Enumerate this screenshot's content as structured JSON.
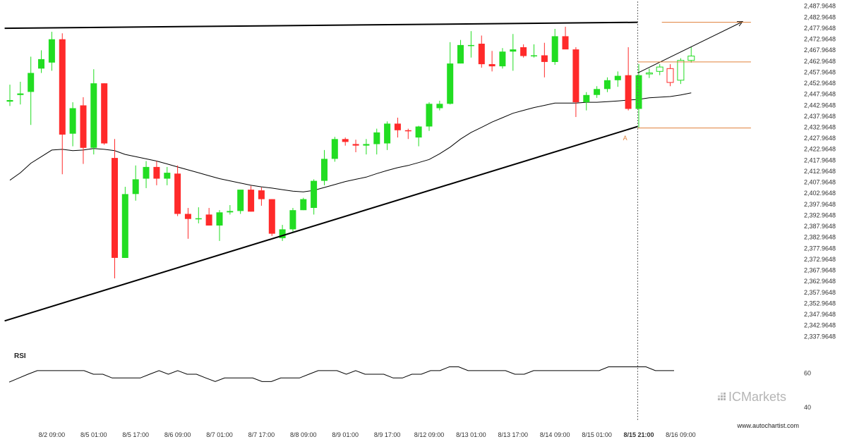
{
  "watermark": {
    "prefix": "IC",
    "name": "Markets"
  },
  "source_url": "www.autochartist.com",
  "chart_data": [
    {
      "type": "candlestick",
      "title": "",
      "y_ticks": [
        "2,487.9648",
        "2,482.9648",
        "2,477.9648",
        "2,472.9648",
        "2,467.9648",
        "2,462.9648",
        "2,457.9648",
        "2,452.9648",
        "2,447.9648",
        "2,442.9648",
        "2,437.9648",
        "2,432.9648",
        "2,427.9648",
        "2,422.9648",
        "2,417.9648",
        "2,412.9648",
        "2,407.9648",
        "2,402.9648",
        "2,397.9648",
        "2,392.9648",
        "2,387.9648",
        "2,382.9648",
        "2,377.9648",
        "2,372.9648",
        "2,367.9648",
        "2,362.9648",
        "2,357.9648",
        "2,352.9648",
        "2,347.9648",
        "2,342.9648",
        "2,337.9648"
      ],
      "ylim": [
        2335.5,
        2488.5
      ],
      "x_ticks": [
        {
          "label": "8/2 09:00",
          "index": 4,
          "bold": false
        },
        {
          "label": "8/5 01:00",
          "index": 8,
          "bold": false
        },
        {
          "label": "8/5 17:00",
          "index": 12,
          "bold": false
        },
        {
          "label": "8/6 09:00",
          "index": 16,
          "bold": false
        },
        {
          "label": "8/7 01:00",
          "index": 20,
          "bold": false
        },
        {
          "label": "8/7 17:00",
          "index": 24,
          "bold": false
        },
        {
          "label": "8/8 09:00",
          "index": 28,
          "bold": false
        },
        {
          "label": "8/9 01:00",
          "index": 32,
          "bold": false
        },
        {
          "label": "8/9 17:00",
          "index": 36,
          "bold": false
        },
        {
          "label": "8/12 09:00",
          "index": 40,
          "bold": false
        },
        {
          "label": "8/13 01:00",
          "index": 44,
          "bold": false
        },
        {
          "label": "8/13 17:00",
          "index": 48,
          "bold": false
        },
        {
          "label": "8/14 09:00",
          "index": 52,
          "bold": false
        },
        {
          "label": "8/15 01:00",
          "index": 56,
          "bold": false
        },
        {
          "label": "8/15 21:00",
          "index": 60,
          "bold": true
        },
        {
          "label": "8/16 09:00",
          "index": 64,
          "bold": false
        }
      ],
      "candles": [
        {
          "o": 2444.6,
          "h": 2452.3,
          "l": 2442.6,
          "c": 2445.3
        },
        {
          "o": 2447.6,
          "h": 2453.6,
          "l": 2443.3,
          "c": 2448.3
        },
        {
          "o": 2449.0,
          "h": 2465.0,
          "l": 2434.0,
          "c": 2457.6
        },
        {
          "o": 2459.6,
          "h": 2467.9,
          "l": 2457.6,
          "c": 2463.9
        },
        {
          "o": 2462.3,
          "h": 2476.3,
          "l": 2458.6,
          "c": 2472.9
        },
        {
          "o": 2472.9,
          "h": 2475.6,
          "l": 2411.6,
          "c": 2429.6
        },
        {
          "o": 2430.0,
          "h": 2444.3,
          "l": 2424.3,
          "c": 2441.6
        },
        {
          "o": 2442.9,
          "h": 2446.6,
          "l": 2416.3,
          "c": 2423.6
        },
        {
          "o": 2423.6,
          "h": 2459.3,
          "l": 2420.6,
          "c": 2452.9
        },
        {
          "o": 2452.9,
          "h": 2452.9,
          "l": 2425.0,
          "c": 2425.6
        },
        {
          "o": 2419.0,
          "h": 2427.6,
          "l": 2364.3,
          "c": 2373.6
        },
        {
          "o": 2373.6,
          "h": 2405.9,
          "l": 2373.6,
          "c": 2402.6
        },
        {
          "o": 2402.6,
          "h": 2415.6,
          "l": 2399.6,
          "c": 2409.3
        },
        {
          "o": 2409.6,
          "h": 2417.6,
          "l": 2405.3,
          "c": 2414.9
        },
        {
          "o": 2414.9,
          "h": 2417.6,
          "l": 2406.6,
          "c": 2409.6
        },
        {
          "o": 2409.6,
          "h": 2414.9,
          "l": 2406.6,
          "c": 2412.3
        },
        {
          "o": 2411.9,
          "h": 2415.6,
          "l": 2392.6,
          "c": 2393.6
        },
        {
          "o": 2393.6,
          "h": 2396.3,
          "l": 2382.3,
          "c": 2391.3
        },
        {
          "o": 2391.3,
          "h": 2396.6,
          "l": 2389.3,
          "c": 2391.6
        },
        {
          "o": 2393.3,
          "h": 2396.3,
          "l": 2388.3,
          "c": 2388.3
        },
        {
          "o": 2388.3,
          "h": 2395.3,
          "l": 2381.3,
          "c": 2394.3
        },
        {
          "o": 2394.3,
          "h": 2397.6,
          "l": 2393.3,
          "c": 2394.9
        },
        {
          "o": 2394.9,
          "h": 2403.6,
          "l": 2393.6,
          "c": 2404.6
        },
        {
          "o": 2404.6,
          "h": 2406.3,
          "l": 2394.6,
          "c": 2394.6
        },
        {
          "o": 2404.3,
          "h": 2405.6,
          "l": 2397.3,
          "c": 2400.3
        },
        {
          "o": 2400.3,
          "h": 2400.3,
          "l": 2383.6,
          "c": 2384.6
        },
        {
          "o": 2382.6,
          "h": 2388.6,
          "l": 2381.3,
          "c": 2386.6
        },
        {
          "o": 2386.6,
          "h": 2396.3,
          "l": 2385.6,
          "c": 2395.3
        },
        {
          "o": 2395.3,
          "h": 2400.9,
          "l": 2395.3,
          "c": 2400.3
        },
        {
          "o": 2396.3,
          "h": 2409.3,
          "l": 2393.3,
          "c": 2408.6
        },
        {
          "o": 2408.6,
          "h": 2422.6,
          "l": 2406.6,
          "c": 2418.6
        },
        {
          "o": 2418.6,
          "h": 2428.6,
          "l": 2417.3,
          "c": 2427.6
        },
        {
          "o": 2427.6,
          "h": 2428.3,
          "l": 2424.6,
          "c": 2426.3
        },
        {
          "o": 2425.3,
          "h": 2427.3,
          "l": 2421.6,
          "c": 2424.6
        },
        {
          "o": 2424.6,
          "h": 2427.6,
          "l": 2420.6,
          "c": 2425.3
        },
        {
          "o": 2425.3,
          "h": 2432.3,
          "l": 2420.6,
          "c": 2430.6
        },
        {
          "o": 2425.6,
          "h": 2435.6,
          "l": 2422.6,
          "c": 2434.6
        },
        {
          "o": 2434.6,
          "h": 2437.3,
          "l": 2428.3,
          "c": 2431.6
        },
        {
          "o": 2431.6,
          "h": 2432.3,
          "l": 2427.6,
          "c": 2431.3
        },
        {
          "o": 2428.3,
          "h": 2433.6,
          "l": 2424.3,
          "c": 2433.3
        },
        {
          "o": 2433.3,
          "h": 2444.3,
          "l": 2431.3,
          "c": 2443.6
        },
        {
          "o": 2441.6,
          "h": 2445.0,
          "l": 2440.6,
          "c": 2443.6
        },
        {
          "o": 2443.6,
          "h": 2471.6,
          "l": 2443.3,
          "c": 2461.9
        },
        {
          "o": 2461.9,
          "h": 2472.6,
          "l": 2461.9,
          "c": 2470.3
        },
        {
          "o": 2470.3,
          "h": 2476.6,
          "l": 2464.6,
          "c": 2470.3
        },
        {
          "o": 2470.9,
          "h": 2474.6,
          "l": 2460.0,
          "c": 2461.6
        },
        {
          "o": 2461.6,
          "h": 2467.6,
          "l": 2458.3,
          "c": 2460.6
        },
        {
          "o": 2460.6,
          "h": 2468.9,
          "l": 2459.6,
          "c": 2467.3
        },
        {
          "o": 2467.3,
          "h": 2475.3,
          "l": 2458.6,
          "c": 2468.3
        },
        {
          "o": 2469.3,
          "h": 2470.6,
          "l": 2464.6,
          "c": 2465.3
        },
        {
          "o": 2465.6,
          "h": 2470.6,
          "l": 2464.6,
          "c": 2465.6
        },
        {
          "o": 2465.6,
          "h": 2471.3,
          "l": 2455.6,
          "c": 2462.6
        },
        {
          "o": 2462.6,
          "h": 2477.6,
          "l": 2461.3,
          "c": 2474.3
        },
        {
          "o": 2474.3,
          "h": 2478.6,
          "l": 2468.6,
          "c": 2468.3
        },
        {
          "o": 2468.3,
          "h": 2469.3,
          "l": 2437.6,
          "c": 2444.3
        },
        {
          "o": 2444.3,
          "h": 2448.9,
          "l": 2440.6,
          "c": 2447.6
        },
        {
          "o": 2447.6,
          "h": 2451.6,
          "l": 2446.3,
          "c": 2450.3
        },
        {
          "o": 2450.3,
          "h": 2455.6,
          "l": 2448.9,
          "c": 2454.3
        },
        {
          "o": 2454.3,
          "h": 2458.3,
          "l": 2451.3,
          "c": 2456.3
        },
        {
          "o": 2456.6,
          "h": 2469.3,
          "l": 2440.6,
          "c": 2441.3
        },
        {
          "o": 2441.3,
          "h": 2461.6,
          "l": 2432.6,
          "c": 2456.6
        },
        {
          "o": 2457.6,
          "h": 2459.6,
          "l": 2455.3,
          "c": 2457.6
        },
        {
          "o": 2458.3,
          "h": 2461.6,
          "l": 2456.6,
          "c": 2460.3
        },
        {
          "o": 2459.6,
          "h": 2461.6,
          "l": 2451.6,
          "c": 2453.3
        },
        {
          "o": 2454.3,
          "h": 2464.3,
          "l": 2452.6,
          "c": 2463.3
        },
        {
          "o": 2463.3,
          "h": 2469.3,
          "l": 2462.3,
          "c": 2465.3
        }
      ],
      "moving_average": [
        2408.9,
        2412.3,
        2416.6,
        2419.6,
        2422.6,
        2422.9,
        2422.3,
        2422.6,
        2423.3,
        2422.9,
        2422.3,
        2420.6,
        2419.6,
        2418.6,
        2417.6,
        2416.3,
        2414.9,
        2413.6,
        2412.3,
        2410.9,
        2409.6,
        2408.6,
        2407.6,
        2406.6,
        2405.9,
        2405.3,
        2404.6,
        2403.9,
        2403.6,
        2404.3,
        2405.6,
        2406.9,
        2408.3,
        2409.3,
        2410.3,
        2411.9,
        2413.3,
        2414.6,
        2415.6,
        2416.9,
        2418.3,
        2420.9,
        2423.9,
        2427.6,
        2430.6,
        2432.9,
        2435.3,
        2437.3,
        2439.3,
        2440.6,
        2441.9,
        2442.9,
        2443.9,
        2443.9,
        2443.9,
        2444.3,
        2444.3,
        2444.6,
        2444.9,
        2445.3,
        2445.6,
        2446.3,
        2446.6,
        2446.9,
        2447.6,
        2448.6
      ],
      "trendlines": [
        {
          "label": "resistance",
          "start_index": -0.5,
          "start_value": 2477.9,
          "end_index": 59.9,
          "end_value": 2480.6,
          "color": "#000000"
        },
        {
          "label": "support",
          "start_index": -0.5,
          "start_value": 2345.0,
          "end_index": 59.9,
          "end_value": 2433.3,
          "color": "#000000"
        }
      ],
      "projection": {
        "start_index": 59.9,
        "start_value": 2457.6,
        "end_index": 69.9,
        "end_value": 2480.9
      },
      "levels": [
        {
          "value": 2480.6,
          "from_index": 62.2,
          "to_index": 70.7,
          "color": "#e0803a"
        },
        {
          "value": 2462.6,
          "from_index": 59.9,
          "to_index": 70.7,
          "color": "#e0803a"
        },
        {
          "value": 2432.6,
          "from_index": 59.9,
          "to_index": 70.7,
          "color": "#e0803a"
        }
      ],
      "marker": {
        "label": "A",
        "index": 58.7,
        "value": 2430.0
      },
      "event_line_index": 59.9,
      "colors": {
        "up": "#22dd22",
        "down": "#ff2a2a",
        "ma": "#000000",
        "level": "#e0803a",
        "trend": "#000000",
        "projection": "#000000"
      }
    },
    {
      "type": "line",
      "title": "RSI",
      "ylim": [
        35,
        70
      ],
      "y_ticks": [
        "60",
        "40"
      ],
      "y_tick_values": [
        60,
        40
      ],
      "values": [
        54.7,
        57.0,
        59.3,
        61.4,
        61.4,
        61.4,
        61.4,
        61.4,
        61.4,
        59.3,
        59.3,
        57.1,
        57.1,
        57.1,
        57.1,
        59.3,
        61.4,
        59.3,
        61.4,
        59.3,
        59.3,
        57.1,
        55.0,
        57.1,
        57.1,
        57.1,
        57.1,
        55.0,
        55.0,
        57.1,
        57.1,
        57.1,
        59.3,
        61.4,
        61.4,
        61.4,
        59.3,
        61.4,
        59.3,
        59.3,
        59.3,
        57.1,
        57.1,
        59.3,
        59.3,
        61.4,
        61.4,
        63.6,
        63.6,
        61.4,
        61.4,
        61.4,
        61.4,
        61.4,
        59.3,
        59.3,
        61.4,
        61.4,
        61.4,
        61.4,
        61.4,
        61.4,
        61.4,
        61.4,
        63.6,
        63.6,
        63.6,
        63.6,
        63.6,
        61.4,
        61.4,
        61.4
      ],
      "color": "#000000"
    }
  ]
}
